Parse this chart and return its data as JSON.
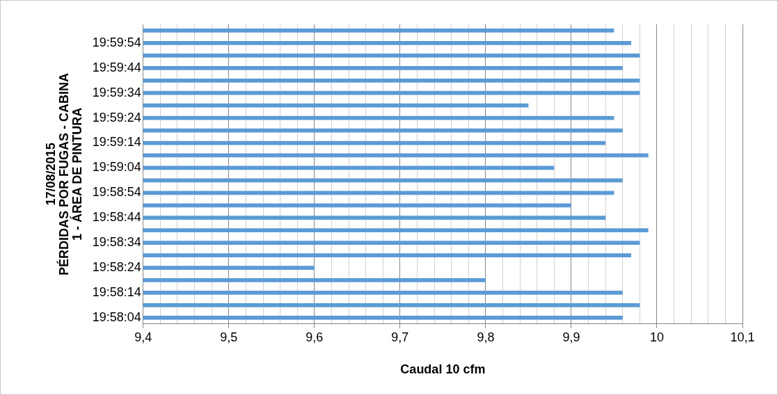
{
  "chart_data": {
    "type": "bar",
    "orientation": "horizontal",
    "xlabel": "Caudal 10 cfm",
    "ylabel": "17/08/2015\nPÉRDIDAS POR FUGAS - CABINA\n1 - ÁREA DE PINTURA",
    "categories": [
      null,
      "19:59:54",
      null,
      "19:59:44",
      null,
      "19:59:34",
      null,
      "19:59:24",
      null,
      "19:59:14",
      null,
      "19:59:04",
      null,
      "19:58:54",
      null,
      "19:58:44",
      null,
      "19:58:34",
      null,
      "19:58:24",
      null,
      "19:58:14",
      null,
      "19:58:04"
    ],
    "values": [
      9.95,
      9.97,
      9.98,
      9.96,
      9.98,
      9.98,
      9.85,
      9.95,
      9.96,
      9.94,
      9.99,
      9.88,
      9.96,
      9.95,
      9.9,
      9.94,
      9.99,
      9.98,
      9.97,
      9.6,
      9.8,
      9.96,
      9.98,
      9.96
    ],
    "color": "#5b9bd5",
    "xlim": [
      9.4,
      10.1
    ],
    "xticks": [
      {
        "value": 9.4,
        "label": "9,4"
      },
      {
        "value": 9.42,
        "label": null
      },
      {
        "value": 9.44,
        "label": null
      },
      {
        "value": 9.46,
        "label": null
      },
      {
        "value": 9.48,
        "label": null
      },
      {
        "value": 9.5,
        "label": "9,5"
      },
      {
        "value": 9.52,
        "label": null
      },
      {
        "value": 9.54,
        "label": null
      },
      {
        "value": 9.56,
        "label": null
      },
      {
        "value": 9.58,
        "label": null
      },
      {
        "value": 9.6,
        "label": "9,6"
      },
      {
        "value": 9.62,
        "label": null
      },
      {
        "value": 9.64,
        "label": null
      },
      {
        "value": 9.66,
        "label": null
      },
      {
        "value": 9.68,
        "label": null
      },
      {
        "value": 9.7,
        "label": "9,7"
      },
      {
        "value": 9.72,
        "label": null
      },
      {
        "value": 9.74,
        "label": null
      },
      {
        "value": 9.76,
        "label": null
      },
      {
        "value": 9.78,
        "label": null
      },
      {
        "value": 9.8,
        "label": "9,8"
      },
      {
        "value": 9.82,
        "label": null
      },
      {
        "value": 9.84,
        "label": null
      },
      {
        "value": 9.86,
        "label": null
      },
      {
        "value": 9.88,
        "label": null
      },
      {
        "value": 9.9,
        "label": "9,9"
      },
      {
        "value": 9.92,
        "label": null
      },
      {
        "value": 9.94,
        "label": null
      },
      {
        "value": 9.96,
        "label": null
      },
      {
        "value": 9.98,
        "label": null
      },
      {
        "value": 10,
        "label": "10"
      },
      {
        "value": 10.02,
        "label": null
      },
      {
        "value": 10.04,
        "label": null
      },
      {
        "value": 10.06,
        "label": null
      },
      {
        "value": 10.08,
        "label": null
      },
      {
        "value": 10.1,
        "label": "10,1"
      }
    ],
    "grid": "x"
  }
}
